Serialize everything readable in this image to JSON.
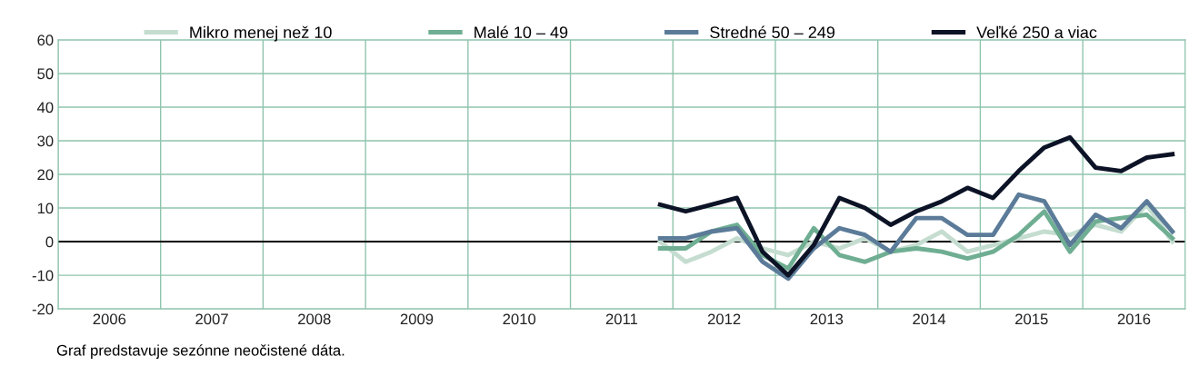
{
  "chart_data": {
    "type": "line",
    "x": [
      2011.875,
      2012.125,
      2012.375,
      2012.625,
      2012.875,
      2013.125,
      2013.375,
      2013.625,
      2013.875,
      2014.125,
      2014.375,
      2014.625,
      2014.875,
      2015.125,
      2015.375,
      2015.625,
      2015.875,
      2016.125,
      2016.375,
      2016.625,
      2016.875
    ],
    "series": [
      {
        "name": "Mikro menej než 10",
        "color": "#c5ddd0",
        "values": [
          0,
          -6,
          -3,
          1,
          -2,
          -4,
          0,
          -2,
          1,
          -3,
          -1,
          3,
          -3,
          -1,
          1,
          3,
          2,
          5,
          3,
          11,
          0
        ]
      },
      {
        "name": "Malé 10 – 49",
        "color": "#6fae92",
        "values": [
          -2,
          -2,
          3,
          5,
          -4,
          -8,
          4,
          -4,
          -6,
          -3,
          -2,
          -3,
          -5,
          -3,
          2,
          9,
          -3,
          6,
          7,
          8,
          1
        ]
      },
      {
        "name": "Stredné 50 – 249",
        "color": "#5b7b99",
        "values": [
          1,
          1,
          3,
          4,
          -6,
          -11,
          -2,
          4,
          2,
          -3,
          7,
          7,
          2,
          2,
          14,
          12,
          -1,
          8,
          4,
          12,
          3
        ]
      },
      {
        "name": "Veľké 250 a viac",
        "color": "#0d1326",
        "values": [
          11,
          9,
          11,
          13,
          -3,
          -10,
          -1,
          13,
          10,
          5,
          9,
          12,
          16,
          13,
          21,
          28,
          31,
          22,
          21,
          25,
          26
        ]
      }
    ],
    "xlim": [
      2006,
      2017
    ],
    "xticks": [
      {
        "value": 2006,
        "label": null
      },
      {
        "value": 2006.5,
        "label": "2006"
      },
      {
        "value": 2007,
        "label": null
      },
      {
        "value": 2007.5,
        "label": "2007"
      },
      {
        "value": 2008,
        "label": null
      },
      {
        "value": 2008.5,
        "label": "2008"
      },
      {
        "value": 2009,
        "label": null
      },
      {
        "value": 2009.5,
        "label": "2009"
      },
      {
        "value": 2010,
        "label": null
      },
      {
        "value": 2010.5,
        "label": "2010"
      },
      {
        "value": 2011,
        "label": null
      },
      {
        "value": 2011.5,
        "label": "2011"
      },
      {
        "value": 2012,
        "label": null
      },
      {
        "value": 2012.5,
        "label": "2012"
      },
      {
        "value": 2013,
        "label": null
      },
      {
        "value": 2013.5,
        "label": "2013"
      },
      {
        "value": 2014,
        "label": null
      },
      {
        "value": 2014.5,
        "label": "2014"
      },
      {
        "value": 2015,
        "label": null
      },
      {
        "value": 2015.5,
        "label": "2015"
      },
      {
        "value": 2016,
        "label": null
      },
      {
        "value": 2016.5,
        "label": "2016"
      },
      {
        "value": 2017,
        "label": null
      }
    ],
    "ylim": [
      -20,
      60
    ],
    "yticks": [
      -20,
      -10,
      0,
      10,
      20,
      30,
      40,
      50,
      60
    ],
    "grid": true,
    "legend": "top",
    "marker": "none",
    "line_style": "solid",
    "ref_lines": [
      {
        "axis": "y",
        "value": 0,
        "label": null,
        "color": "#000000"
      }
    ],
    "annotations": [
      "Graf predstavuje sezónne neočistené dáta."
    ]
  }
}
